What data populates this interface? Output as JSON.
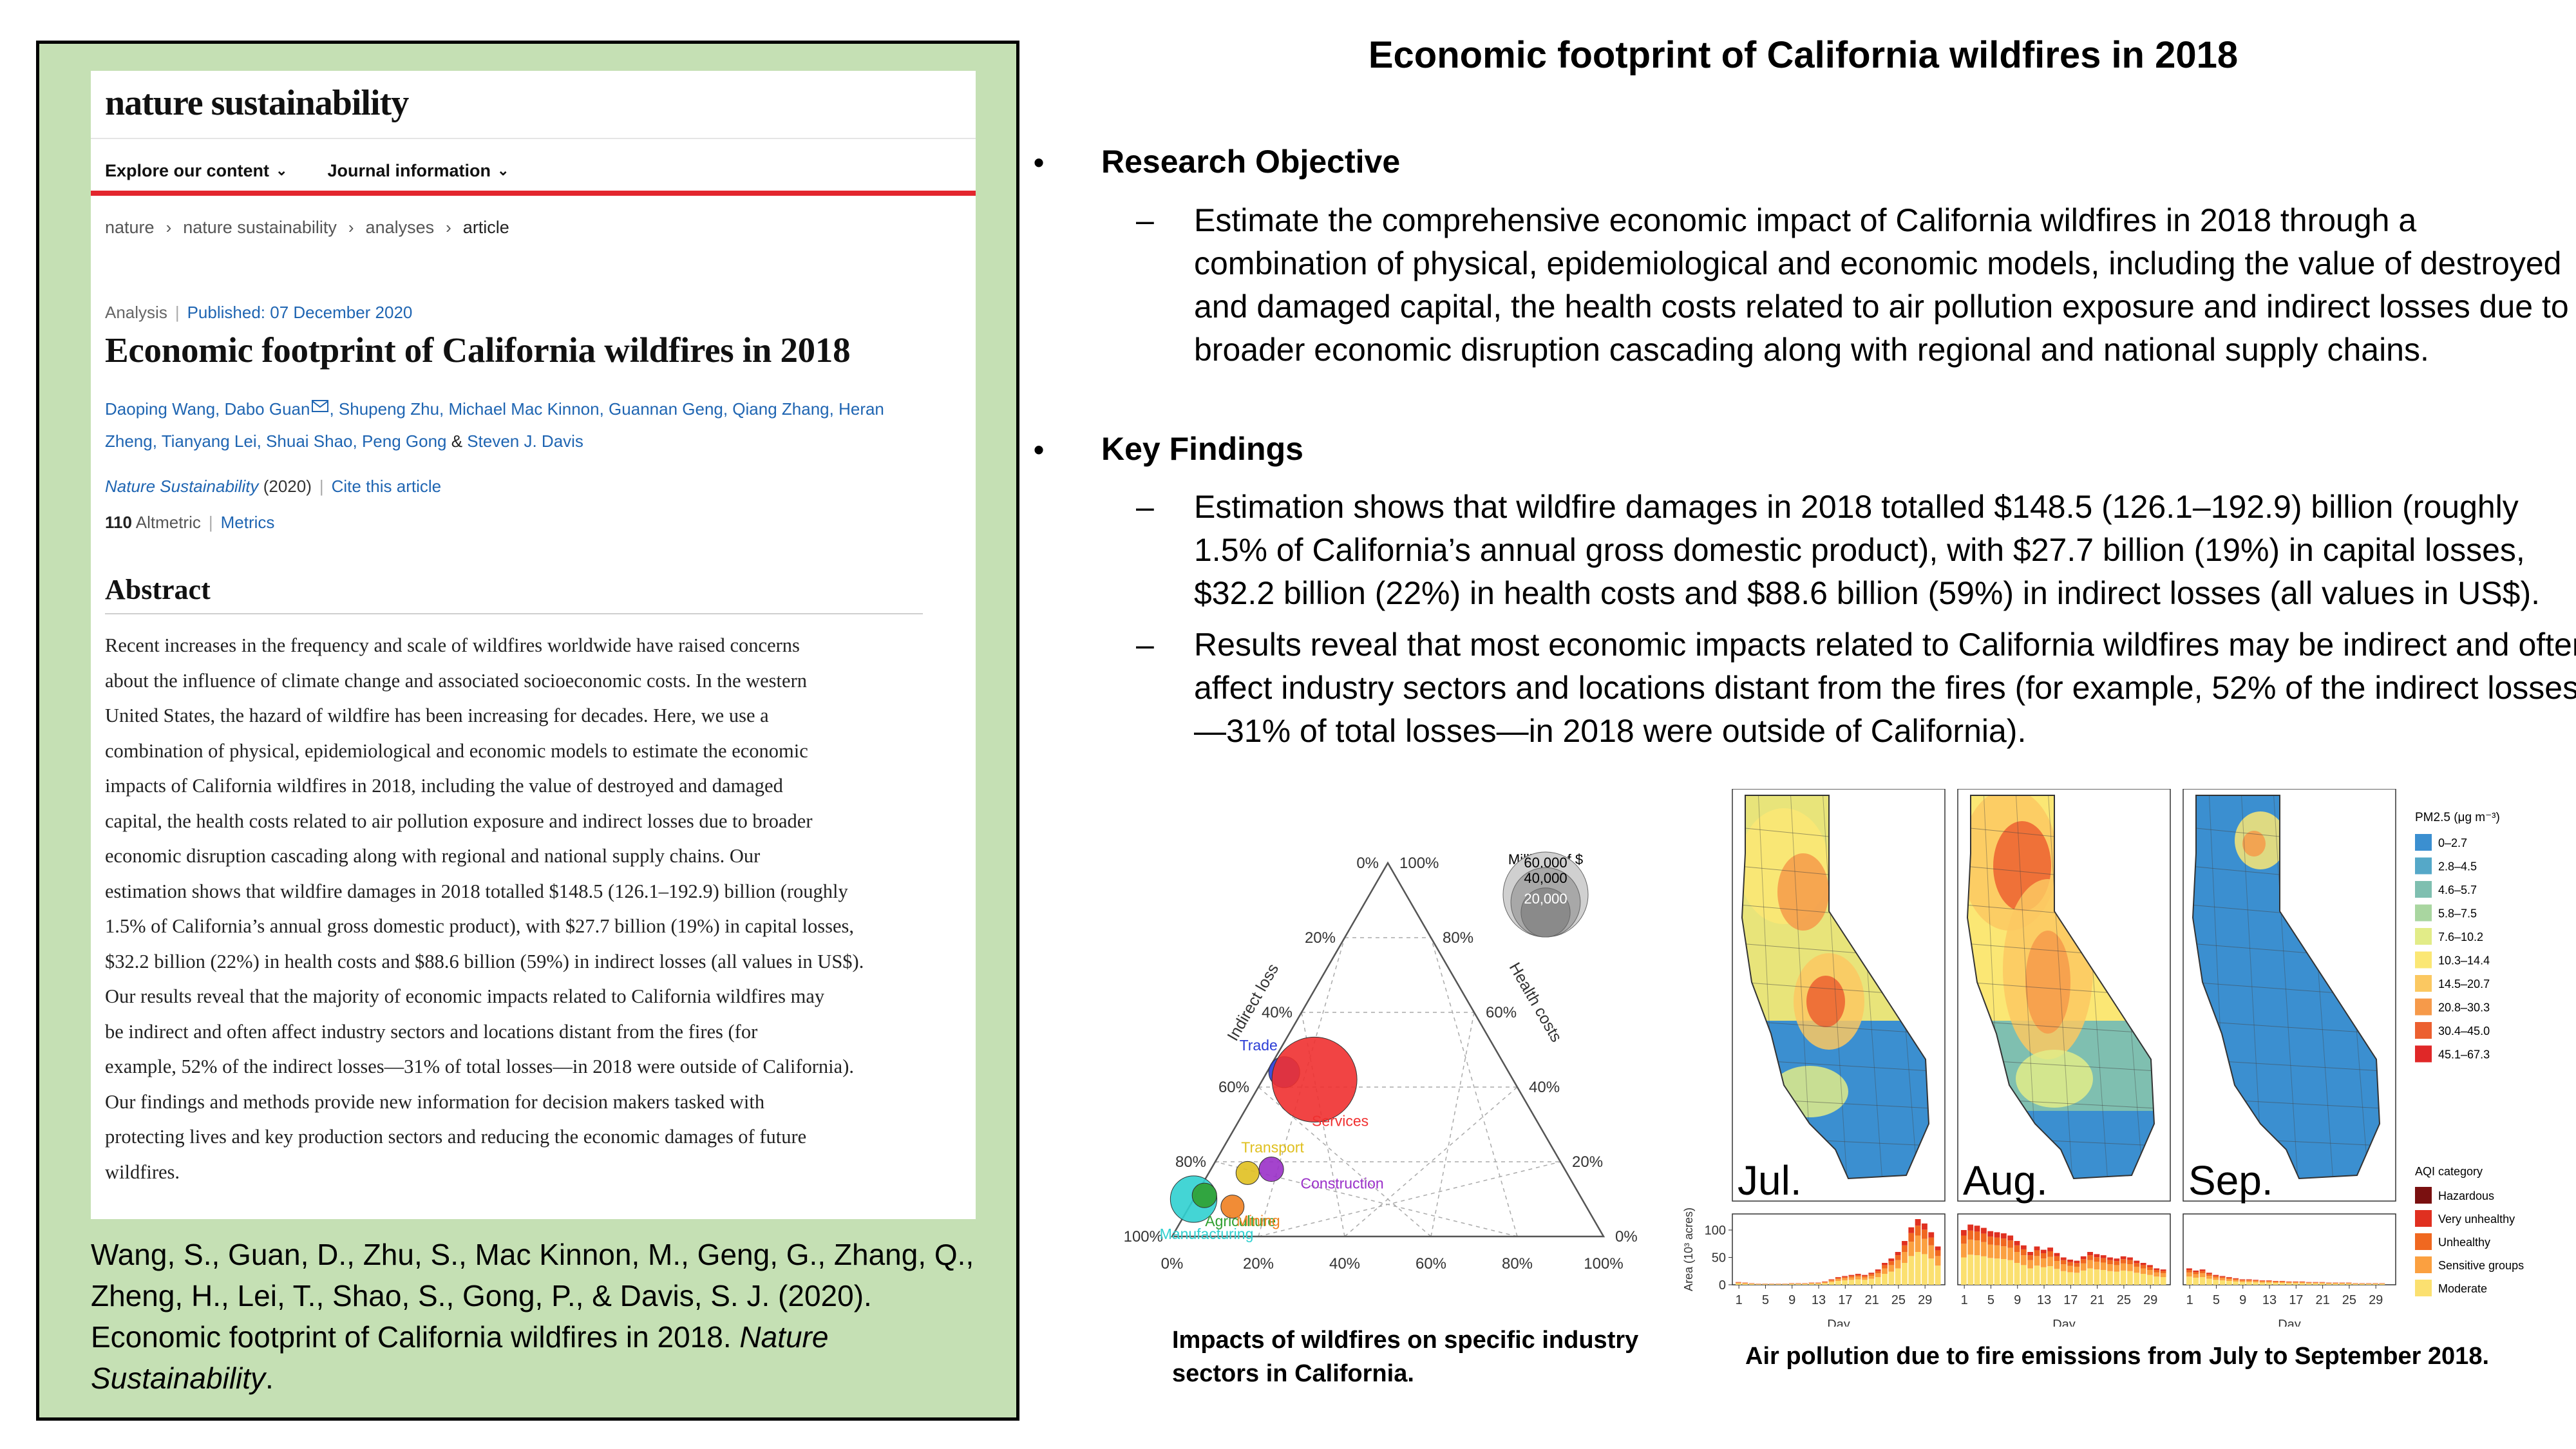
{
  "slide_title": "Economic footprint of California wildfires in 2018",
  "paper": {
    "journal_logo": "nature sustainability",
    "nav": [
      {
        "label": "Explore our content"
      },
      {
        "label": "Journal information"
      }
    ],
    "breadcrumb": [
      "nature",
      "nature sustainability",
      "analyses",
      "article"
    ],
    "meta_type": "Analysis",
    "meta_published": "Published: 07 December 2020",
    "title": "Economic footprint of California wildfires in 2018",
    "authors_line1": "Daoping Wang, Dabo Guan",
    "authors_line1b": ", Shupeng Zhu, Michael Mac Kinnon, Guannan Geng, Qiang Zhang, Heran",
    "authors_line2": "Zheng, Tianyang Lei, Shuai Shao, Peng Gong",
    "authors_amp": " & ",
    "authors_last": "Steven J. Davis",
    "journal_name": "Nature Sustainability",
    "journal_year": "(2020)",
    "cite_link": "Cite this article",
    "altmetric_value": "110",
    "altmetric_label": "Altmetric",
    "metrics_link": "Metrics",
    "abstract_heading": "Abstract",
    "abstract_lines": [
      "Recent increases in the frequency and scale of wildfires worldwide have raised concerns",
      "about the influence of climate change and associated socioeconomic costs. In the western",
      "United States, the hazard of wildfire has been increasing for decades. Here, we use a",
      "combination of physical, epidemiological and economic models to estimate the economic",
      "impacts of California wildfires in 2018, including the value of destroyed and damaged",
      "capital, the health costs related to air pollution exposure and indirect losses due to broader",
      "economic disruption cascading along with regional and national supply chains. Our",
      "estimation shows that wildfire damages in 2018 totalled $148.5 (126.1–192.9) billion (roughly",
      "1.5% of California’s annual gross domestic product), with $27.7 billion (19%) in capital losses,",
      "$32.2 billion (22%) in health costs and $88.6 billion (59%) in indirect losses (all values in US$).",
      "Our results reveal that the majority of economic impacts related to California wildfires may",
      "be indirect and often affect industry sectors and locations distant from the fires (for",
      "example, 52% of the indirect losses—31% of total losses—in 2018 were outside of California).",
      "Our findings and methods provide new information for decision makers tasked with",
      "protecting lives and key production sectors and reducing the economic damages of future",
      "wildfires."
    ]
  },
  "citation": {
    "text": "Wang, S., Guan, D., Zhu, S., Mac Kinnon, M., Geng, G., Zhang, Q., Zheng, H., Lei, T., Shao, S., Gong, P., & Davis, S. J. (2020). Economic footprint of California wildfires in 2018. ",
    "journal": "Nature Sustainability",
    "end": "."
  },
  "bullets": {
    "objective_heading": "Research Objective",
    "objective_text": "Estimate the comprehensive economic impact of California wildfires in 2018 through a combination of physical, epidemiological and economic models, including  the value of destroyed and damaged capital, the health costs related to air pollution exposure and indirect losses due to broader economic disruption cascading along with regional and national supply chains.",
    "findings_heading": "Key Findings",
    "finding_1": "Estimation shows that wildfire damages in 2018 totalled $148.5 (126.1–192.9) billion (roughly 1.5% of California’s annual gross domestic product), with $27.7 billion (19%) in capital losses, $32.2 billion (22%) in health costs and $88.6 billion (59%) in indirect losses (all values in US$).",
    "finding_2": "Results reveal that most economic impacts related to California wildfires may be indirect and often affect industry sectors and locations distant from the fires  (for example, 52% of the indirect losses—31% of total losses—in 2018 were outside of California).",
    "dash": "–"
  },
  "chart_data": [
    {
      "type": "scatter",
      "subtype": "ternary-bubble",
      "caption": "Impacts of wildfires on specific industry sectors in California.",
      "axes": {
        "bottom_ticks": [
          "0%",
          "20%",
          "40%",
          "60%",
          "80%",
          "100%"
        ],
        "left_label": "Indirect loss",
        "left_ticks": [
          "100%",
          "80%",
          "60%",
          "40%",
          "20%",
          "0%"
        ],
        "right_label": "Health costs",
        "right_ticks": [
          "100%",
          "80%",
          "60%",
          "40%",
          "20%",
          "0%"
        ]
      },
      "size_legend": {
        "title": "Millions of $",
        "values": [
          60000,
          40000,
          20000
        ],
        "labels": [
          "60,000",
          "40,000",
          "20,000"
        ]
      },
      "points": [
        {
          "name": "Trade",
          "indirect": 52,
          "health": 44,
          "millions": 8000,
          "color": "#2b3dd6"
        },
        {
          "name": "Services",
          "indirect": 46,
          "health": 42,
          "millions": 60000,
          "color": "#f03030"
        },
        {
          "name": "Transport",
          "indirect": 74,
          "health": 17,
          "millions": 3500,
          "color": "#e0c020"
        },
        {
          "name": "Construction",
          "indirect": 68,
          "health": 18,
          "millions": 5000,
          "color": "#9a30c8"
        },
        {
          "name": "Manufacturing",
          "indirect": 90,
          "health": 10,
          "millions": 18000,
          "color": "#30d0d0"
        },
        {
          "name": "Agriculture",
          "indirect": 87,
          "health": 11,
          "millions": 5000,
          "color": "#30a030"
        },
        {
          "name": "Mining",
          "indirect": 82,
          "health": 8,
          "millions": 2500,
          "color": "#f08020"
        }
      ]
    },
    {
      "type": "bar",
      "subtype": "stacked-daily-with-maps",
      "caption": "Air pollution due to fire emissions from July to September 2018.",
      "panels": [
        {
          "label": "Jul.",
          "values": [
            5,
            4,
            3,
            2,
            2,
            2,
            2,
            2,
            3,
            3,
            3,
            4,
            4,
            6,
            10,
            14,
            16,
            18,
            20,
            18,
            22,
            28,
            40,
            48,
            60,
            80,
            105,
            120,
            112,
            96,
            70
          ]
        },
        {
          "label": "Aug.",
          "values": [
            100,
            110,
            108,
            104,
            98,
            96,
            94,
            90,
            80,
            72,
            60,
            70,
            64,
            68,
            58,
            50,
            46,
            44,
            52,
            60,
            56,
            54,
            50,
            48,
            52,
            50,
            44,
            40,
            36,
            30,
            28
          ]
        },
        {
          "label": "Sep.",
          "values": [
            30,
            26,
            28,
            22,
            18,
            16,
            14,
            12,
            10,
            10,
            9,
            8,
            8,
            7,
            7,
            6,
            6,
            6,
            5,
            5,
            5,
            4,
            4,
            4,
            4,
            3,
            3,
            3,
            3,
            3
          ]
        }
      ],
      "y_ticks": [
        0,
        50,
        100
      ],
      "y_label": "Area (10³ acres)",
      "x_ticks": [
        "1",
        "5",
        "9",
        "13",
        "17",
        "21",
        "25",
        "29"
      ],
      "x_label": "Day",
      "pm_legend_title": "PM2.5 (μg m⁻³)",
      "pm_legend": [
        {
          "label": "0–2.7",
          "color": "#3b8fd0"
        },
        {
          "label": "2.8–4.5",
          "color": "#55a8c8"
        },
        {
          "label": "4.6–5.7",
          "color": "#7fbfb0"
        },
        {
          "label": "5.8–7.5",
          "color": "#a9d6a0"
        },
        {
          "label": "7.6–10.2",
          "color": "#e2ec88"
        },
        {
          "label": "10.3–14.4",
          "color": "#fbe774"
        },
        {
          "label": "14.5–20.7",
          "color": "#fbc861"
        },
        {
          "label": "20.8–30.3",
          "color": "#f69a4a"
        },
        {
          "label": "30.4–45.0",
          "color": "#ec6030"
        },
        {
          "label": "45.1–67.3",
          "color": "#e02828"
        }
      ],
      "aqi_legend_title": "AQI category",
      "aqi_legend": [
        {
          "label": "Hazardous",
          "color": "#7a1010"
        },
        {
          "label": "Very unhealthy",
          "color": "#e03020"
        },
        {
          "label": "Unhealthy",
          "color": "#f06820"
        },
        {
          "label": "Sensitive groups",
          "color": "#fba040"
        },
        {
          "label": "Moderate",
          "color": "#fbe070"
        }
      ]
    }
  ]
}
